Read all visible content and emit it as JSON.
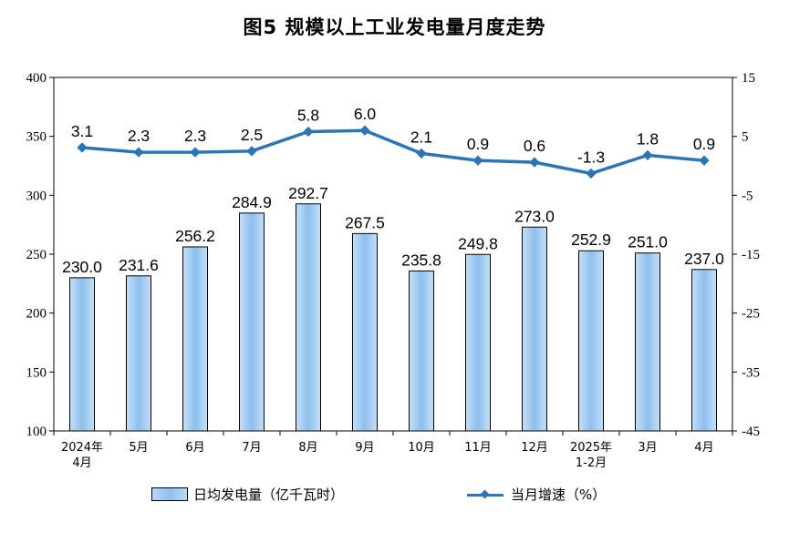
{
  "title": "图5 规模以上工业发电量月度走势",
  "chart_data": {
    "type": "bar+line",
    "categories": [
      [
        "2024年",
        "4月"
      ],
      [
        "5月"
      ],
      [
        "6月"
      ],
      [
        "7月"
      ],
      [
        "8月"
      ],
      [
        "9月"
      ],
      [
        "10月"
      ],
      [
        "11月"
      ],
      [
        "12月"
      ],
      [
        "2025年",
        "1-2月"
      ],
      [
        "3月"
      ],
      [
        "4月"
      ]
    ],
    "series": [
      {
        "name": "日均发电量（亿千瓦时）",
        "type": "bar",
        "axis": "left",
        "values": [
          230.0,
          231.6,
          256.2,
          284.9,
          292.7,
          267.5,
          235.8,
          249.8,
          273.0,
          252.9,
          251.0,
          237.0
        ],
        "labels": [
          "230.0",
          "231.6",
          "256.2",
          "284.9",
          "292.7",
          "267.5",
          "235.8",
          "249.8",
          "273.0",
          "252.9",
          "251.0",
          "237.0"
        ]
      },
      {
        "name": "当月增速（%）",
        "type": "line",
        "axis": "right",
        "values": [
          3.1,
          2.3,
          2.3,
          2.5,
          5.8,
          6.0,
          2.1,
          0.9,
          0.6,
          -1.3,
          1.8,
          0.9
        ],
        "labels": [
          "3.1",
          "2.3",
          "2.3",
          "2.5",
          "5.8",
          "6.0",
          "2.1",
          "0.9",
          "0.6",
          "-1.3",
          "1.8",
          "0.9"
        ]
      }
    ],
    "y_left": {
      "min": 100,
      "max": 400,
      "ticks": [
        "100",
        "150",
        "200",
        "250",
        "300",
        "350",
        "400"
      ]
    },
    "y_right": {
      "min": -45,
      "max": 15,
      "ticks": [
        "-45",
        "-35",
        "-25",
        "-15",
        "-5",
        "5",
        "15"
      ]
    },
    "colors": {
      "bar_fill": "#a9cff4",
      "bar_edge": "#000000",
      "line": "#2e75b6"
    },
    "grid": false,
    "legend_position": "bottom"
  }
}
